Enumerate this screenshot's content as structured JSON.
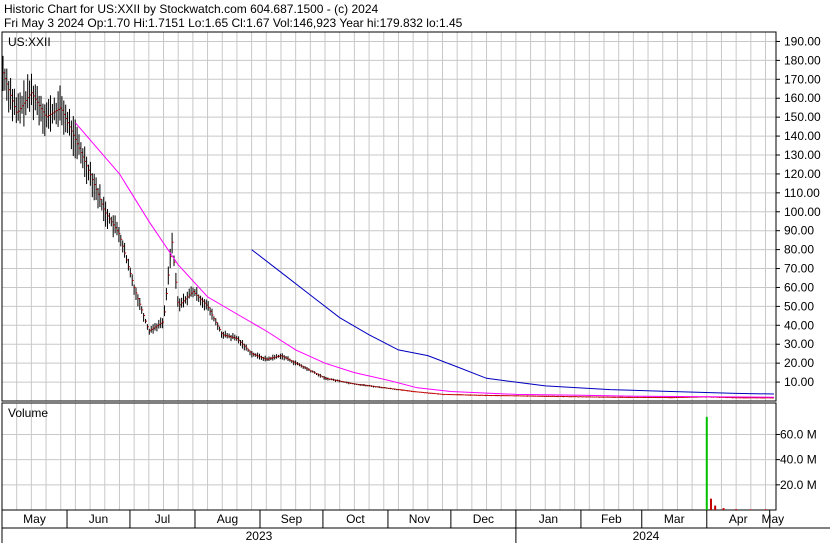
{
  "header": {
    "line1": "Historic Chart for US:XXII by Stockwatch.com 604.687.1500 - (c) 2024",
    "line2": "Fri May  3 2024   Op:1.70   Hi:1.7151   Lo:1.65   Cl:1.67   Vol:146,923   Year hi:179.832   lo:1.45"
  },
  "chart_data": [
    {
      "type": "ohlc",
      "title": "US:XXII",
      "ylabel": "",
      "ylim": [
        0,
        195
      ],
      "ytick_values": [
        10,
        20,
        30,
        40,
        50,
        60,
        70,
        80,
        90,
        100,
        110,
        120,
        130,
        140,
        150,
        160,
        170,
        180,
        190
      ],
      "ytick_labels": [
        "10.00",
        "20.00",
        "30.00",
        "40.00",
        "50.00",
        "60.00",
        "70.00",
        "80.00",
        "90.00",
        "100.00",
        "110.00",
        "120.00",
        "130.00",
        "140.00",
        "150.00",
        "160.00",
        "170.00",
        "180.00",
        "190.00"
      ],
      "x_month_labels": [
        "May",
        "Jun",
        "Jul",
        "Aug",
        "Sep",
        "Oct",
        "Nov",
        "Dec",
        "Jan",
        "Feb",
        "Mar",
        "Apr",
        "May"
      ],
      "x_year_labels": [
        "2023",
        "2024"
      ],
      "grid": true,
      "price_series": [
        {
          "date": "2023-05-01",
          "value": 175
        },
        {
          "date": "2023-05-08",
          "value": 152
        },
        {
          "date": "2023-05-15",
          "value": 163
        },
        {
          "date": "2023-05-22",
          "value": 150
        },
        {
          "date": "2023-05-29",
          "value": 155
        },
        {
          "date": "2023-06-05",
          "value": 138
        },
        {
          "date": "2023-06-12",
          "value": 120
        },
        {
          "date": "2023-06-19",
          "value": 100
        },
        {
          "date": "2023-06-26",
          "value": 88
        },
        {
          "date": "2023-07-03",
          "value": 60
        },
        {
          "date": "2023-07-10",
          "value": 37
        },
        {
          "date": "2023-07-17",
          "value": 42
        },
        {
          "date": "2023-07-21",
          "value": 85
        },
        {
          "date": "2023-07-24",
          "value": 50
        },
        {
          "date": "2023-07-31",
          "value": 58
        },
        {
          "date": "2023-08-07",
          "value": 50
        },
        {
          "date": "2023-08-14",
          "value": 35
        },
        {
          "date": "2023-08-21",
          "value": 33
        },
        {
          "date": "2023-08-28",
          "value": 25
        },
        {
          "date": "2023-09-04",
          "value": 22
        },
        {
          "date": "2023-09-11",
          "value": 24
        },
        {
          "date": "2023-09-18",
          "value": 20
        },
        {
          "date": "2023-09-25",
          "value": 16
        },
        {
          "date": "2023-10-02",
          "value": 12
        },
        {
          "date": "2023-10-16",
          "value": 9
        },
        {
          "date": "2023-10-30",
          "value": 7
        },
        {
          "date": "2023-11-13",
          "value": 5
        },
        {
          "date": "2023-11-27",
          "value": 3.5
        },
        {
          "date": "2023-12-15",
          "value": 3
        },
        {
          "date": "2024-01-15",
          "value": 2.5
        },
        {
          "date": "2024-02-15",
          "value": 2
        },
        {
          "date": "2024-03-15",
          "value": 1.8
        },
        {
          "date": "2024-04-01",
          "value": 2.2
        },
        {
          "date": "2024-04-15",
          "value": 1.7
        },
        {
          "date": "2024-05-03",
          "value": 1.67
        }
      ],
      "moving_averages": [
        {
          "color": "#ff00ff",
          "points": [
            {
              "date": "2023-06-05",
              "value": 147
            },
            {
              "date": "2023-06-26",
              "value": 120
            },
            {
              "date": "2023-07-10",
              "value": 95
            },
            {
              "date": "2023-07-24",
              "value": 72
            },
            {
              "date": "2023-08-07",
              "value": 55
            },
            {
              "date": "2023-08-21",
              "value": 46
            },
            {
              "date": "2023-09-04",
              "value": 37
            },
            {
              "date": "2023-09-18",
              "value": 27
            },
            {
              "date": "2023-10-02",
              "value": 20
            },
            {
              "date": "2023-10-16",
              "value": 15
            },
            {
              "date": "2023-11-01",
              "value": 11
            },
            {
              "date": "2023-11-15",
              "value": 7
            },
            {
              "date": "2023-12-01",
              "value": 5
            },
            {
              "date": "2024-01-01",
              "value": 3.5
            },
            {
              "date": "2024-02-01",
              "value": 3
            },
            {
              "date": "2024-03-01",
              "value": 2.5
            },
            {
              "date": "2024-05-03",
              "value": 2
            }
          ]
        },
        {
          "color": "#0000c0",
          "points": [
            {
              "date": "2023-08-28",
              "value": 80
            },
            {
              "date": "2023-09-11",
              "value": 68
            },
            {
              "date": "2023-09-25",
              "value": 56
            },
            {
              "date": "2023-10-09",
              "value": 44
            },
            {
              "date": "2023-10-23",
              "value": 35
            },
            {
              "date": "2023-11-06",
              "value": 27
            },
            {
              "date": "2023-11-20",
              "value": 24
            },
            {
              "date": "2023-12-04",
              "value": 18
            },
            {
              "date": "2023-12-18",
              "value": 12
            },
            {
              "date": "2024-01-15",
              "value": 8
            },
            {
              "date": "2024-02-15",
              "value": 6
            },
            {
              "date": "2024-03-15",
              "value": 5
            },
            {
              "date": "2024-04-15",
              "value": 4
            },
            {
              "date": "2024-05-03",
              "value": 3.7
            }
          ]
        }
      ]
    },
    {
      "type": "bar",
      "title": "Volume",
      "ylim": [
        0,
        85000000
      ],
      "ytick_values": [
        20000000,
        40000000,
        60000000
      ],
      "ytick_labels": [
        "20.0 M",
        "40.0 M",
        "60.0 M"
      ],
      "bars": [
        {
          "date": "2024-04-01",
          "value": 74000000,
          "color": "#00c000"
        },
        {
          "date": "2024-04-03",
          "value": 9000000,
          "color": "#c00000"
        },
        {
          "date": "2024-04-05",
          "value": 3500000,
          "color": "#c00000"
        },
        {
          "date": "2024-04-09",
          "value": 1500000,
          "color": "#c00000"
        },
        {
          "date": "2024-04-15",
          "value": 700000,
          "color": "#c00000"
        },
        {
          "date": "2024-04-22",
          "value": 500000,
          "color": "#c00000"
        },
        {
          "date": "2024-04-29",
          "value": 600000,
          "color": "#c00000"
        }
      ]
    }
  ]
}
